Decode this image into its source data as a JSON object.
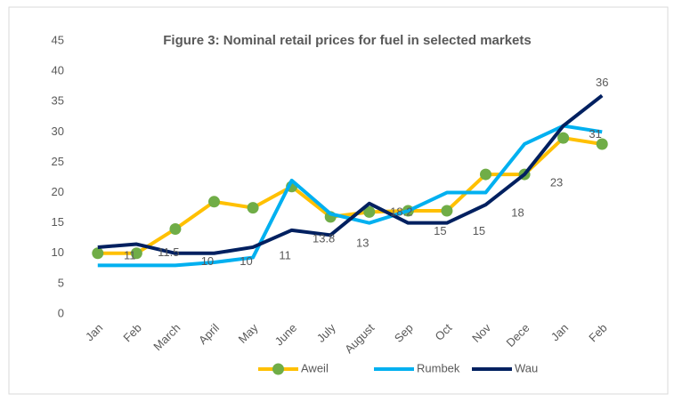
{
  "chart_data": {
    "type": "line",
    "title": "Figure 3: Nominal retail prices for fuel in selected markets",
    "categories": [
      "Jan",
      "Feb",
      "March",
      "April",
      "May",
      "June",
      "July",
      "August",
      "Sep",
      "Oct",
      "Nov",
      "Dece",
      "Jan",
      "Feb"
    ],
    "series": [
      {
        "name": "Aweil",
        "color": "#ffc000",
        "marker_color": "#70ad47",
        "values": [
          10,
          10,
          14,
          18.5,
          17.5,
          21,
          16,
          16.8,
          17,
          17,
          23,
          23,
          29,
          28
        ]
      },
      {
        "name": "Rumbek",
        "color": "#00b0f0",
        "values": [
          8,
          8,
          8,
          8.5,
          9.3,
          22,
          16.5,
          15,
          17,
          20,
          20,
          28,
          31,
          30
        ]
      },
      {
        "name": "Wau",
        "color": "#002060",
        "data_labels": true,
        "values": [
          11,
          11.5,
          10,
          10,
          11,
          13.8,
          13,
          18.2,
          15,
          15,
          18,
          23,
          31,
          36
        ]
      }
    ],
    "ylim": [
      0,
      45
    ],
    "yticks": [
      0,
      5,
      10,
      15,
      20,
      25,
      30,
      35,
      40,
      45
    ],
    "grid": false,
    "legend": "bottom"
  }
}
